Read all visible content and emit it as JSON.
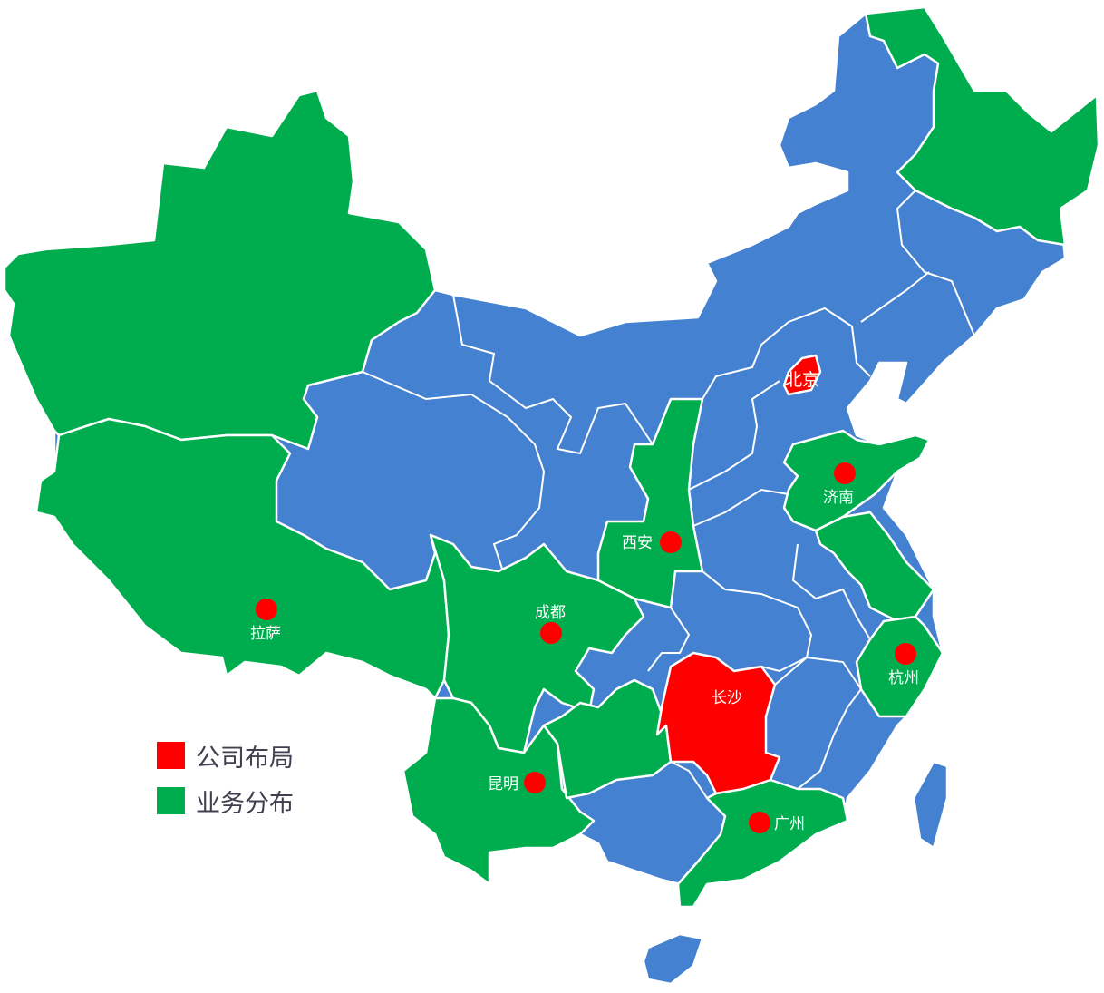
{
  "colors": {
    "base": "#4481d0",
    "business": "#00ad4e",
    "office": "#ff0000",
    "border": "#ffffff",
    "label": "#ffffff",
    "legend_text": "#3f3f4f"
  },
  "legend": [
    {
      "label": "公司布局",
      "color": "#ff0000"
    },
    {
      "label": "业务分布",
      "color": "#00ad4e"
    }
  ],
  "cities": {
    "beijing": "北京",
    "changsha": "长沙",
    "lhasa": "拉萨",
    "chengdu": "成都",
    "xian": "西安",
    "jinan": "济南",
    "hangzhou": "杭州",
    "kunming": "昆明",
    "guangzhou": "广州"
  }
}
